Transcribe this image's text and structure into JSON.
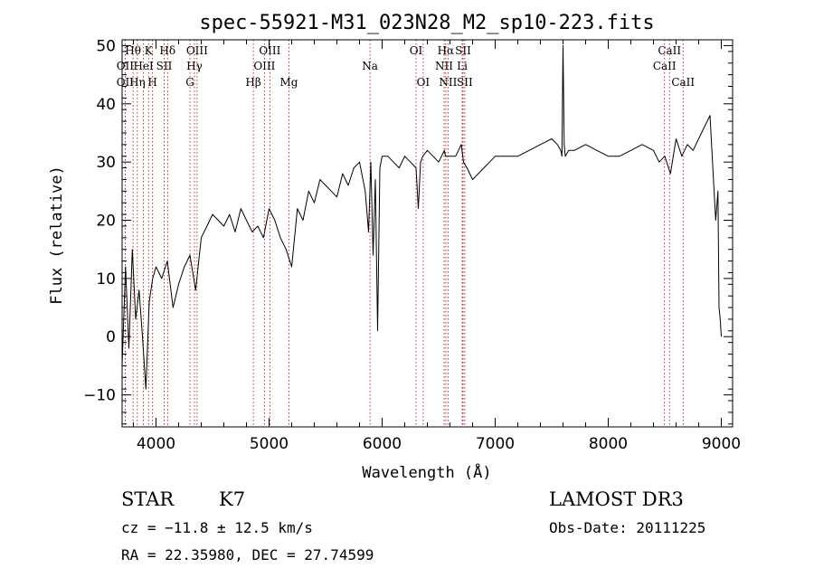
{
  "chart_data": {
    "type": "line",
    "title": "spec-55921-M31_023N28_M2_sp10-223.fits",
    "xlabel": "Wavelength (Å)",
    "ylabel": "Flux (relative)",
    "xlim": [
      3700,
      9100
    ],
    "ylim": [
      -15.5,
      51
    ],
    "x_ticks": [
      4000,
      5000,
      6000,
      7000,
      8000,
      9000
    ],
    "y_ticks": [
      -10,
      0,
      10,
      20,
      30,
      40,
      50
    ],
    "x_tick_labels": [
      "4000",
      "5000",
      "6000",
      "7000",
      "8000",
      "9000"
    ],
    "y_tick_labels": [
      "−10",
      "0",
      "10",
      "20",
      "30",
      "40",
      "50"
    ],
    "spectrum_color": "#000000",
    "line_marker_color": "#b00000",
    "series": [
      {
        "name": "flux",
        "x": [
          3700,
          3730,
          3760,
          3790,
          3820,
          3850,
          3880,
          3910,
          3940,
          3970,
          4000,
          4050,
          4100,
          4150,
          4200,
          4250,
          4300,
          4350,
          4400,
          4450,
          4500,
          4550,
          4600,
          4650,
          4700,
          4750,
          4800,
          4850,
          4900,
          4950,
          5000,
          5050,
          5100,
          5150,
          5200,
          5250,
          5300,
          5350,
          5400,
          5450,
          5500,
          5550,
          5600,
          5650,
          5700,
          5750,
          5800,
          5850,
          5880,
          5900,
          5920,
          5940,
          5960,
          5980,
          6000,
          6050,
          6100,
          6150,
          6200,
          6250,
          6300,
          6320,
          6340,
          6360,
          6400,
          6450,
          6500,
          6550,
          6560,
          6600,
          6650,
          6700,
          6720,
          6750,
          6800,
          6850,
          6900,
          6950,
          7000,
          7100,
          7200,
          7300,
          7400,
          7500,
          7550,
          7580,
          7590,
          7600,
          7610,
          7620,
          7650,
          7700,
          7800,
          7900,
          8000,
          8100,
          8200,
          8300,
          8400,
          8450,
          8500,
          8550,
          8600,
          8650,
          8700,
          8750,
          8800,
          8850,
          8900,
          8950,
          8970,
          8980,
          8990,
          9000
        ],
        "y": [
          -5,
          12,
          -2,
          15,
          3,
          8,
          0,
          -9,
          6,
          10,
          12,
          10,
          13,
          5,
          9,
          12,
          14,
          8,
          17,
          19,
          21,
          20,
          19,
          21,
          18,
          22,
          20,
          18,
          19,
          17,
          22,
          20,
          17,
          15,
          12,
          22,
          20,
          25,
          23,
          27,
          26,
          25,
          24,
          28,
          26,
          29,
          30,
          25,
          18,
          30,
          14,
          27,
          1,
          29,
          31,
          31,
          30,
          29,
          31,
          30,
          29,
          22,
          30,
          31,
          32,
          31,
          30,
          32,
          31,
          31,
          31,
          33,
          30,
          29,
          27,
          28,
          29,
          30,
          31,
          31,
          31,
          32,
          33,
          34,
          33,
          32,
          31,
          50,
          33,
          31,
          32,
          32,
          33,
          32,
          31,
          31,
          32,
          33,
          32,
          30,
          31,
          28,
          34,
          31,
          33,
          32,
          34,
          36,
          38,
          20,
          25,
          5,
          3,
          0
        ]
      }
    ],
    "lines": [
      {
        "wave": 3797,
        "label": "Hθ",
        "row": 0
      },
      {
        "wave": 3727,
        "label": "OII",
        "row": 1
      },
      {
        "wave": 3727,
        "label": "OII",
        "row": 2
      },
      {
        "wave": 3835,
        "label": "Hη",
        "row": 2
      },
      {
        "wave": 3889,
        "label": "HeI",
        "row": 1
      },
      {
        "wave": 3934,
        "label": "K",
        "row": 0
      },
      {
        "wave": 3969,
        "label": "H",
        "row": 2
      },
      {
        "wave": 4072,
        "label": "SII",
        "row": 1
      },
      {
        "wave": 4102,
        "label": "Hδ",
        "row": 0
      },
      {
        "wave": 4300,
        "label": "G",
        "row": 2
      },
      {
        "wave": 4340,
        "label": "Hγ",
        "row": 1
      },
      {
        "wave": 4363,
        "label": "OIII",
        "row": 0
      },
      {
        "wave": 4861,
        "label": "Hβ",
        "row": 2
      },
      {
        "wave": 4959,
        "label": "OIII",
        "row": 1
      },
      {
        "wave": 5007,
        "label": "OIII",
        "row": 0
      },
      {
        "wave": 5176,
        "label": "Mg",
        "row": 2
      },
      {
        "wave": 5893,
        "label": "Na",
        "row": 1
      },
      {
        "wave": 6300,
        "label": "OI",
        "row": 0
      },
      {
        "wave": 6363,
        "label": "OI",
        "row": 2
      },
      {
        "wave": 6548,
        "label": "NII",
        "row": 1
      },
      {
        "wave": 6563,
        "label": "Hα",
        "row": 0
      },
      {
        "wave": 6583,
        "label": "NII",
        "row": 2
      },
      {
        "wave": 6708,
        "label": "Li",
        "row": 1
      },
      {
        "wave": 6716,
        "label": "SII",
        "row": 0
      },
      {
        "wave": 6731,
        "label": "SII",
        "row": 2
      },
      {
        "wave": 8498,
        "label": "CaII",
        "row": 1
      },
      {
        "wave": 8542,
        "label": "CaII",
        "row": 0
      },
      {
        "wave": 8662,
        "label": "CaII",
        "row": 2
      }
    ]
  },
  "info": {
    "object_class": "STAR",
    "subclass": "K7",
    "redshift": "cz = −11.8 ± 12.5 km/s",
    "coords": "RA =  22.35980, DEC =  27.74599",
    "survey": "LAMOST DR3",
    "obs_date": "Obs-Date: 20111225"
  }
}
